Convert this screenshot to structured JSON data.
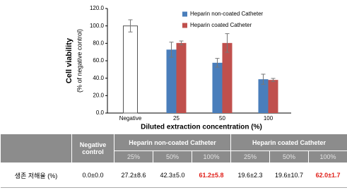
{
  "chart_data": {
    "type": "bar",
    "ylabel": "Cell viability",
    "ysublabel": "(% of negative control)",
    "xlabel": "Diluted extraction concentration (%)",
    "categories": [
      "Negative",
      "25",
      "50",
      "100"
    ],
    "series": [
      {
        "color": "#ffffff",
        "values": [
          100,
          null,
          null,
          null
        ],
        "errors": [
          7,
          null,
          null,
          null
        ]
      },
      {
        "name": "Heparin non-coated Catheter",
        "color": "#4a7ebb",
        "values": [
          null,
          72.8,
          57.7,
          38.8
        ],
        "errors": [
          null,
          8.6,
          5.0,
          5.8
        ]
      },
      {
        "name": "Heparin coated Catheter",
        "color": "#c0504d",
        "values": [
          null,
          80.4,
          80.4,
          38.0
        ],
        "errors": [
          null,
          2.3,
          10.7,
          1.7
        ]
      }
    ],
    "ylim": [
      0,
      120
    ],
    "yticks": [
      {
        "value": 0,
        "label": "0.0"
      },
      {
        "value": 20,
        "label": "20.0"
      },
      {
        "value": 40,
        "label": "40.0"
      },
      {
        "value": 60,
        "label": "60.0"
      },
      {
        "value": 80,
        "label": "80.0"
      },
      {
        "value": 100,
        "label": "100.0"
      },
      {
        "value": 120,
        "label": "120.0"
      }
    ]
  },
  "table": {
    "header": [
      "Negative control",
      "Heparin non-coated Catheter",
      "Heparin coated Catheter"
    ],
    "subheader": [
      "25%",
      "50%",
      "100%",
      "25%",
      "50%",
      "100%"
    ],
    "row": [
      "생존 저해율 (%)",
      "0.0±0.0",
      "27.2±8.6",
      "42.3±5.0",
      "61.2±5.8",
      "19.6±2.3",
      "19.6±10.7",
      "62.0±1.7"
    ]
  }
}
